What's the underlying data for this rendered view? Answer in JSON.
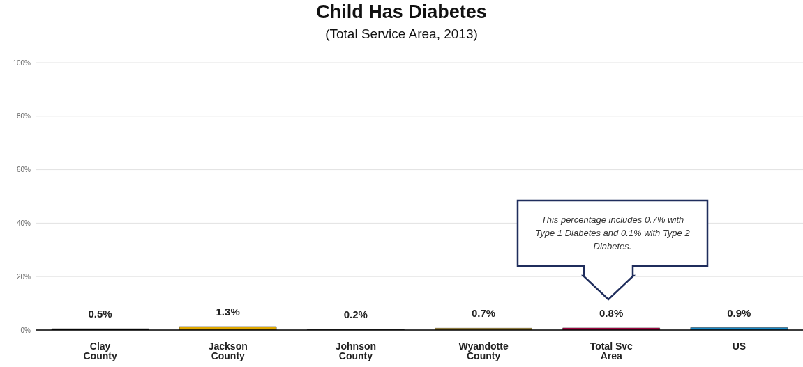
{
  "chart_data": {
    "type": "bar",
    "title": "Child Has Diabetes",
    "subtitle": "(Total Service Area, 2013)",
    "categories": [
      "Clay County",
      "Jackson County",
      "Johnson County",
      "Wyandotte County",
      "Total Svc Area",
      "US"
    ],
    "values": [
      0.5,
      1.3,
      0.2,
      0.7,
      0.8,
      0.9
    ],
    "colors": [
      "#1a1a1a",
      "#e0a800",
      "#5a5a5a",
      "#c8a020",
      "#c0004a",
      "#1a8fd0"
    ],
    "value_labels": [
      "0.5%",
      "1.3%",
      "0.2%",
      "0.7%",
      "0.8%",
      "0.9%"
    ],
    "ylim": [
      0,
      100
    ],
    "yticks": [
      {
        "value": 0,
        "label": "0%"
      },
      {
        "value": 20,
        "label": "20%"
      },
      {
        "value": 40,
        "label": "40%"
      },
      {
        "value": 60,
        "label": "60%"
      },
      {
        "value": 80,
        "label": "80%"
      },
      {
        "value": 100,
        "label": "100%"
      }
    ],
    "grid": "y",
    "annotations": [
      "This percentage includes 0.7% with Type 1 Diabetes and 0.1% with Type 2 Diabetes."
    ]
  }
}
